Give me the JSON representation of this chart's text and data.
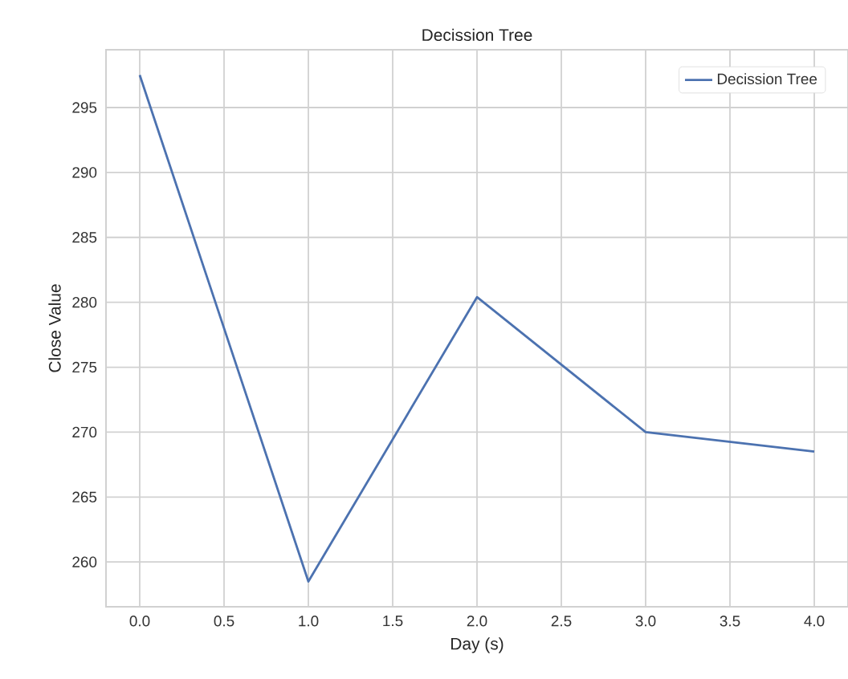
{
  "chart_data": {
    "type": "line",
    "title": "Decission Tree",
    "xlabel": "Day (s)",
    "ylabel": "Close Value",
    "x": [
      0,
      1,
      2,
      3,
      4
    ],
    "series": [
      {
        "name": "Decission Tree",
        "color": "#4c72b0",
        "values": [
          297.5,
          258.5,
          280.4,
          270.0,
          268.5
        ]
      }
    ],
    "xlim": [
      -0.2,
      4.2
    ],
    "ylim": [
      256.55,
      299.45
    ],
    "xticks": [
      {
        "value": 0,
        "label": "0.0"
      },
      {
        "value": 0.5,
        "label": "0.5"
      },
      {
        "value": 1,
        "label": "1.0"
      },
      {
        "value": 1.5,
        "label": "1.5"
      },
      {
        "value": 2,
        "label": "2.0"
      },
      {
        "value": 2.5,
        "label": "2.5"
      },
      {
        "value": 3,
        "label": "3.0"
      },
      {
        "value": 3.5,
        "label": "3.5"
      },
      {
        "value": 4,
        "label": "4.0"
      }
    ],
    "yticks": [
      260,
      265,
      270,
      275,
      280,
      285,
      290,
      295
    ],
    "grid": true,
    "legend": "top right",
    "marker": "none",
    "line_style": "solid"
  }
}
